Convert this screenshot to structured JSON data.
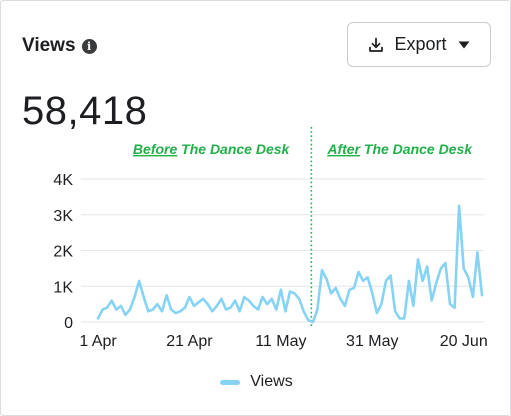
{
  "header": {
    "title": "Views",
    "info_icon": "info-icon",
    "export_label": "Export",
    "export_icon": "download-icon",
    "dropdown_icon": "caret-down-icon"
  },
  "summary": {
    "total": "58,418"
  },
  "annotations": {
    "before_word": "Before",
    "before_rest": " The Dance Desk",
    "after_word": "After",
    "after_rest": " The Dance Desk",
    "divider_date": "2024-05-18"
  },
  "colors": {
    "line": "#86d3f5",
    "annotation": "#22b04a",
    "grid": "#e4e6eb",
    "text": "#1c1e21"
  },
  "legend": {
    "label": "Views"
  },
  "chart_data": {
    "type": "line",
    "x_start": "2024-04-01",
    "ylim": [
      0,
      4000
    ],
    "y_ticks": [
      0,
      1000,
      2000,
      3000,
      4000
    ],
    "y_tick_labels": [
      "0",
      "1K",
      "2K",
      "3K",
      "4K"
    ],
    "x_tick_labels": [
      "1 Apr",
      "21 Apr",
      "11 May",
      "31 May",
      "20 Jun"
    ],
    "x_tick_dates": [
      "2024-04-01",
      "2024-04-21",
      "2024-05-11",
      "2024-05-31",
      "2024-06-20"
    ],
    "grid": true,
    "legend_position": "bottom-center",
    "series": [
      {
        "name": "Views",
        "values": [
          100,
          350,
          400,
          600,
          350,
          450,
          200,
          350,
          700,
          1150,
          700,
          300,
          350,
          500,
          300,
          750,
          350,
          250,
          300,
          400,
          700,
          450,
          550,
          650,
          500,
          300,
          450,
          650,
          350,
          400,
          600,
          300,
          700,
          600,
          450,
          350,
          700,
          500,
          650,
          350,
          900,
          300,
          850,
          800,
          650,
          300,
          50,
          0,
          350,
          1450,
          1200,
          800,
          950,
          650,
          450,
          900,
          950,
          1400,
          1150,
          1250,
          800,
          250,
          500,
          1150,
          1300,
          300,
          100,
          100,
          1150,
          450,
          1750,
          1150,
          1550,
          600,
          1100,
          1500,
          1650,
          500,
          400,
          3250,
          1500,
          1250,
          700,
          1950,
          750
        ]
      }
    ]
  }
}
